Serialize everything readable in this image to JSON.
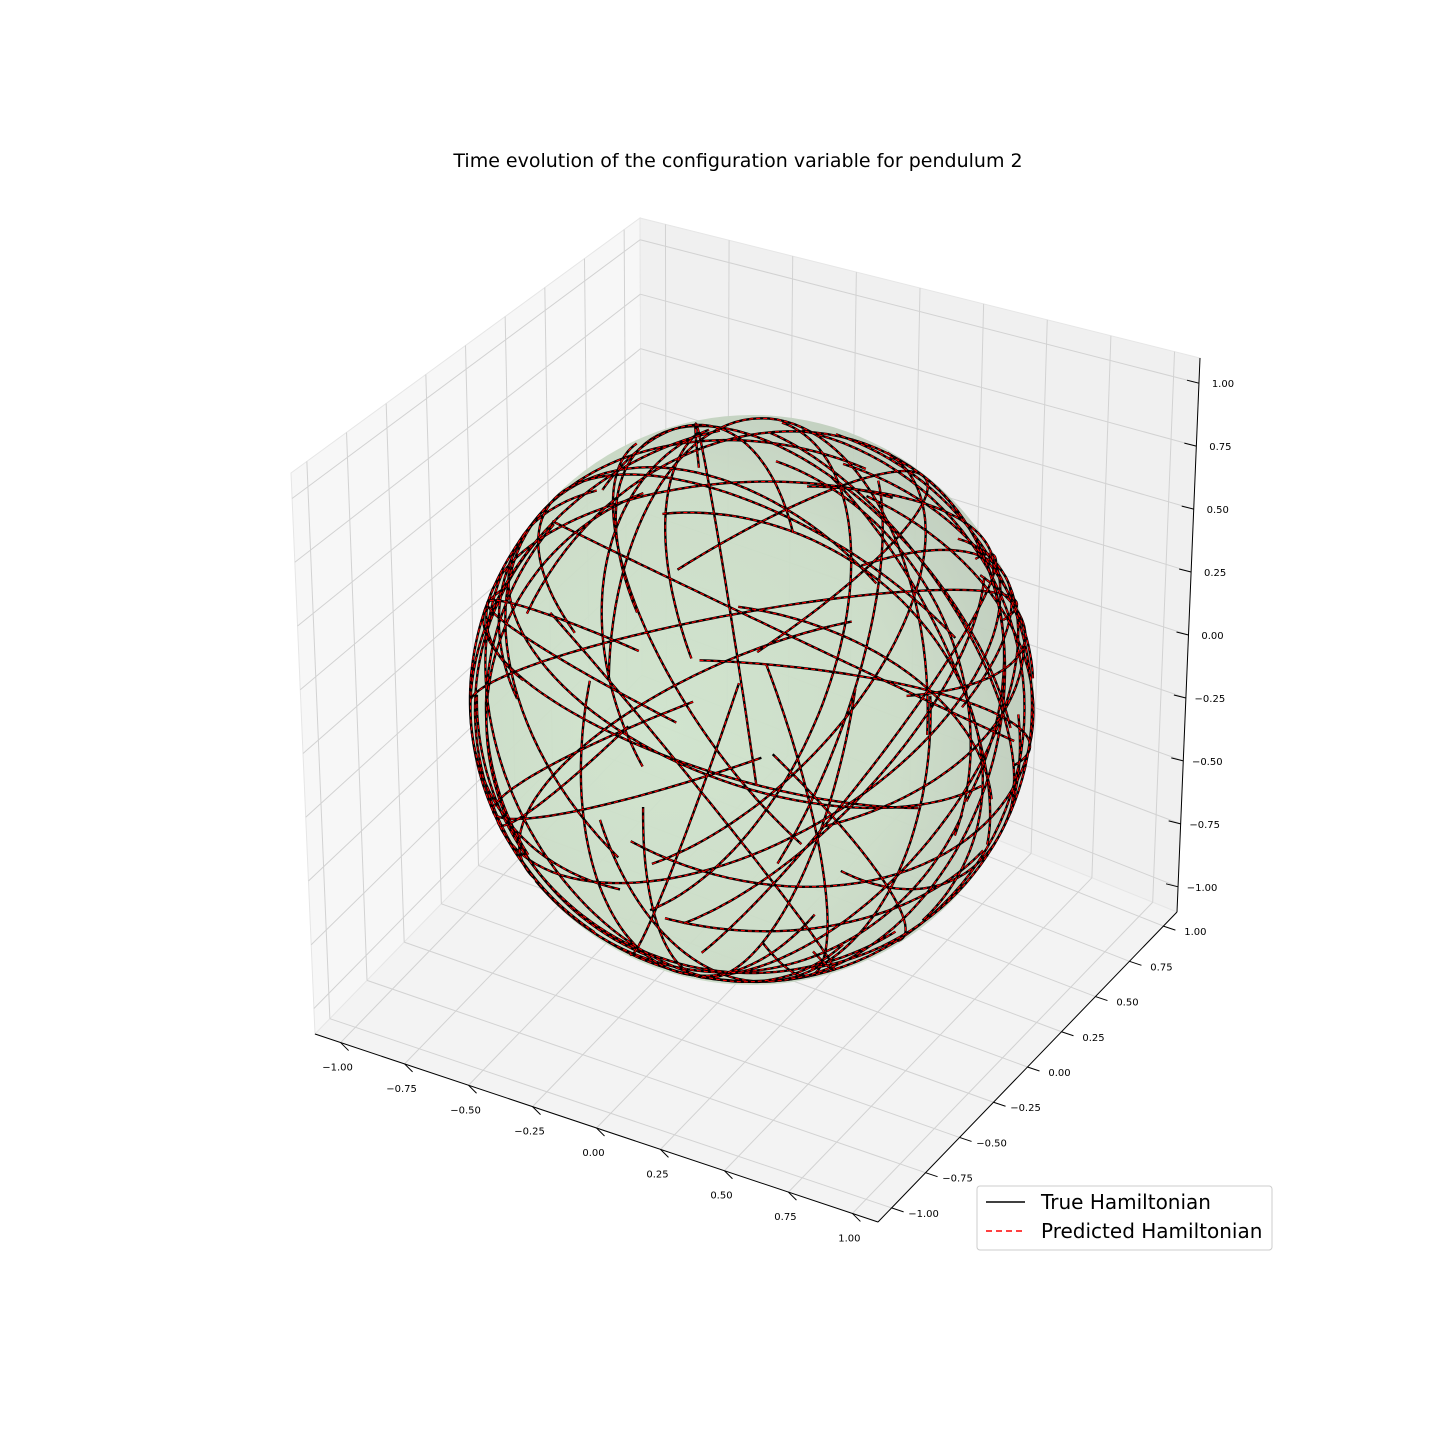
{
  "chart_data": {
    "type": "3d-line",
    "title": "Time evolution of the configuration variable for pendulum 2",
    "xlabel": "",
    "ylabel": "",
    "zlabel": "",
    "xlim": [
      -1.1,
      1.1
    ],
    "ylim": [
      -1.1,
      1.1
    ],
    "zlim": [
      -1.1,
      1.1
    ],
    "x_ticks": [
      "−1.00",
      "−0.75",
      "−0.50",
      "−0.25",
      "0.00",
      "0.25",
      "0.50",
      "0.75",
      "1.00"
    ],
    "y_ticks": [
      "−1.00",
      "−0.75",
      "−0.50",
      "−0.25",
      "0.00",
      "0.25",
      "0.50",
      "0.75",
      "1.00"
    ],
    "z_ticks": [
      "−1.00",
      "−0.75",
      "−0.50",
      "−0.25",
      "0.00",
      "0.25",
      "0.50",
      "0.75",
      "1.00"
    ],
    "surface": {
      "shape": "unit sphere",
      "color": "#b5d4b5"
    },
    "series": [
      {
        "name": "True Hamiltonian",
        "color": "#000000",
        "style": "solid"
      },
      {
        "name": "Predicted Hamiltonian",
        "color": "#ff0000",
        "style": "dashed"
      }
    ],
    "trajectory_count": 60,
    "legend_position": "lower-right",
    "grid": true
  }
}
